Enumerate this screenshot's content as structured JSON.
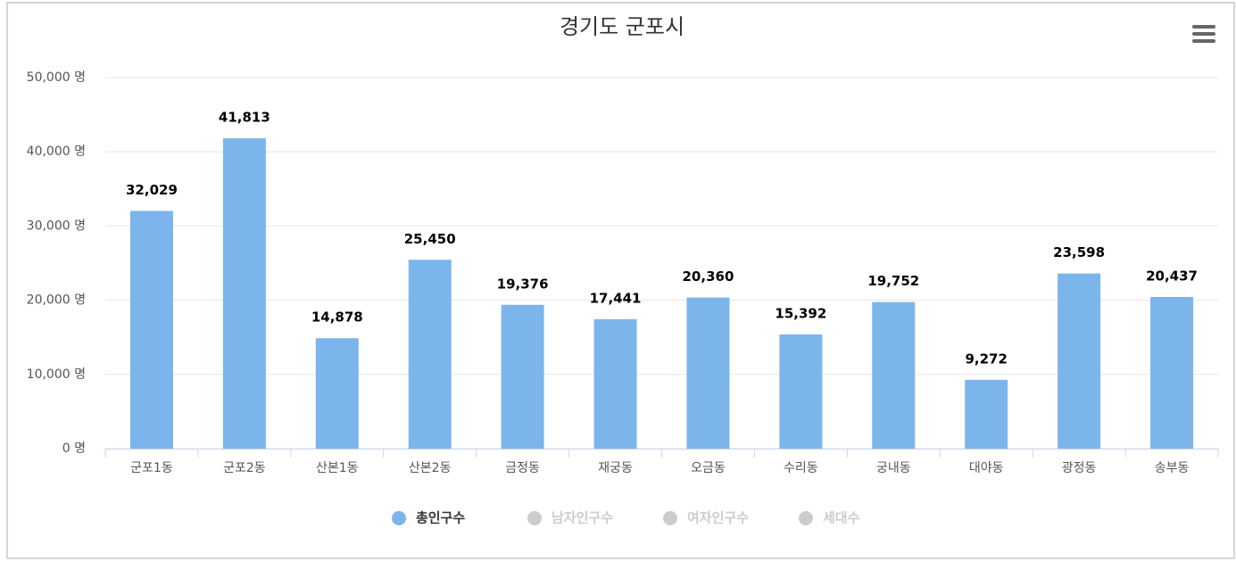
{
  "chart_data": {
    "type": "bar",
    "title": "경기도 군포시",
    "categories": [
      "군포1동",
      "군포2동",
      "산본1동",
      "산본2동",
      "금정동",
      "재궁동",
      "오금동",
      "수리동",
      "궁내동",
      "대야동",
      "광정동",
      "송부동"
    ],
    "series": [
      {
        "name": "총인구수",
        "color": "#7cb5ec",
        "values": [
          32029,
          41813,
          14878,
          25450,
          19376,
          17441,
          20360,
          15392,
          19752,
          9272,
          23598,
          20437
        ],
        "value_labels": [
          "32,029",
          "41,813",
          "14,878",
          "25,450",
          "19,376",
          "17,441",
          "20,360",
          "15,392",
          "19,752",
          "9,272",
          "23,598",
          "20,437"
        ]
      }
    ],
    "hidden_series": [
      {
        "name": "남자인구수"
      },
      {
        "name": "여자인구수"
      },
      {
        "name": "세대수"
      }
    ],
    "hidden_color": "#cccccc",
    "ylim": [
      0,
      50000
    ],
    "yticks": [
      {
        "value": 0,
        "label": "0 명"
      },
      {
        "value": 10000,
        "label": "10,000 명"
      },
      {
        "value": 20000,
        "label": "20,000 명"
      },
      {
        "value": 30000,
        "label": "30,000 명"
      },
      {
        "value": 40000,
        "label": "40,000 명"
      },
      {
        "value": 50000,
        "label": "50,000 명"
      }
    ],
    "grid": true,
    "legend": "bottom"
  }
}
